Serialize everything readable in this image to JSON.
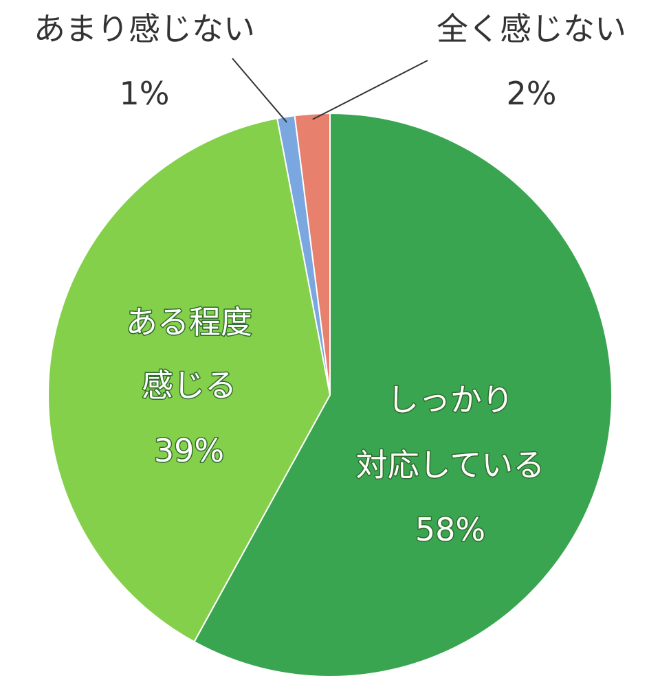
{
  "colors": {
    "しっかり対応している": "#3aa550",
    "ある程度感じる": "#84d04a",
    "あまり感じない": "#7aa7e0",
    "全く感じない": "#e8806e"
  },
  "chart_data": {
    "type": "pie",
    "start": "12 o'clock",
    "direction": "clockwise",
    "slices": [
      {
        "lines": [
          "しっかり",
          "対応している"
        ],
        "percent_label": "58%",
        "value": 58,
        "color": "#3aa550"
      },
      {
        "lines": [
          "ある程度",
          "感じる"
        ],
        "percent_label": "39%",
        "value": 39,
        "color": "#84d04a"
      },
      {
        "lines": [
          "あまり感じない"
        ],
        "percent_label": "1%",
        "value": 1,
        "color": "#7aa7e0"
      },
      {
        "lines": [
          "全く感じない"
        ],
        "percent_label": "2%",
        "value": 2,
        "color": "#e8806e"
      }
    ]
  }
}
